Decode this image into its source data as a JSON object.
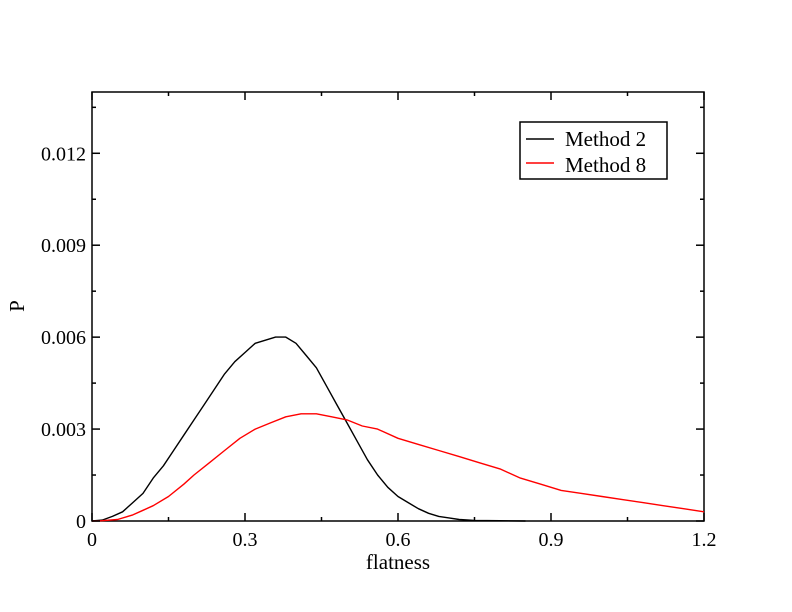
{
  "chart_data": {
    "type": "line",
    "title": "",
    "xlabel": "flatness",
    "ylabel": "P",
    "xlim": [
      0,
      1.2
    ],
    "ylim": [
      0,
      0.014
    ],
    "x_ticks": [
      0,
      0.3,
      0.6,
      0.9,
      1.2
    ],
    "x_tick_labels": [
      "0",
      "0.3",
      "0.6",
      "0.9",
      "1.2"
    ],
    "y_ticks": [
      0,
      0.003,
      0.006,
      0.009,
      0.012
    ],
    "y_tick_labels": [
      "0",
      "0.003",
      "0.006",
      "0.009",
      "0.012"
    ],
    "grid": false,
    "legend_position": "top-right",
    "series": [
      {
        "name": "Method 2",
        "color": "#000000",
        "points": [
          [
            0.0,
            0.0
          ],
          [
            0.02,
            3e-05
          ],
          [
            0.04,
            0.00015
          ],
          [
            0.06,
            0.0003
          ],
          [
            0.08,
            0.0006
          ],
          [
            0.1,
            0.0009
          ],
          [
            0.12,
            0.0014
          ],
          [
            0.14,
            0.0018
          ],
          [
            0.16,
            0.0023
          ],
          [
            0.18,
            0.0028
          ],
          [
            0.2,
            0.0033
          ],
          [
            0.22,
            0.0038
          ],
          [
            0.24,
            0.0043
          ],
          [
            0.26,
            0.0048
          ],
          [
            0.28,
            0.0052
          ],
          [
            0.3,
            0.0055
          ],
          [
            0.32,
            0.0058
          ],
          [
            0.34,
            0.0059
          ],
          [
            0.36,
            0.006
          ],
          [
            0.38,
            0.006
          ],
          [
            0.4,
            0.0058
          ],
          [
            0.42,
            0.0054
          ],
          [
            0.44,
            0.005
          ],
          [
            0.46,
            0.0044
          ],
          [
            0.48,
            0.0038
          ],
          [
            0.5,
            0.0032
          ],
          [
            0.52,
            0.0026
          ],
          [
            0.54,
            0.002
          ],
          [
            0.56,
            0.0015
          ],
          [
            0.58,
            0.0011
          ],
          [
            0.6,
            0.0008
          ],
          [
            0.62,
            0.0006
          ],
          [
            0.64,
            0.0004
          ],
          [
            0.66,
            0.00025
          ],
          [
            0.68,
            0.00015
          ],
          [
            0.7,
            0.0001
          ],
          [
            0.72,
            5e-05
          ],
          [
            0.75,
            2e-05
          ],
          [
            0.8,
            1e-05
          ],
          [
            0.85,
            0.0
          ]
        ]
      },
      {
        "name": "Method 8",
        "color": "#ff0000",
        "points": [
          [
            0.0,
            0.0
          ],
          [
            0.02,
            1e-05
          ],
          [
            0.05,
            5e-05
          ],
          [
            0.08,
            0.0002
          ],
          [
            0.1,
            0.00035
          ],
          [
            0.12,
            0.0005
          ],
          [
            0.15,
            0.0008
          ],
          [
            0.18,
            0.0012
          ],
          [
            0.2,
            0.0015
          ],
          [
            0.23,
            0.0019
          ],
          [
            0.26,
            0.0023
          ],
          [
            0.29,
            0.0027
          ],
          [
            0.32,
            0.003
          ],
          [
            0.35,
            0.0032
          ],
          [
            0.38,
            0.0034
          ],
          [
            0.41,
            0.0035
          ],
          [
            0.44,
            0.0035
          ],
          [
            0.47,
            0.0034
          ],
          [
            0.5,
            0.0033
          ],
          [
            0.53,
            0.0031
          ],
          [
            0.56,
            0.003
          ],
          [
            0.6,
            0.0027
          ],
          [
            0.64,
            0.0025
          ],
          [
            0.68,
            0.0023
          ],
          [
            0.72,
            0.0021
          ],
          [
            0.76,
            0.0019
          ],
          [
            0.8,
            0.0017
          ],
          [
            0.84,
            0.0014
          ],
          [
            0.88,
            0.0012
          ],
          [
            0.92,
            0.001
          ],
          [
            0.96,
            0.0009
          ],
          [
            1.0,
            0.0008
          ],
          [
            1.04,
            0.0007
          ],
          [
            1.08,
            0.0006
          ],
          [
            1.12,
            0.0005
          ],
          [
            1.16,
            0.0004
          ],
          [
            1.2,
            0.0003
          ]
        ]
      }
    ]
  }
}
